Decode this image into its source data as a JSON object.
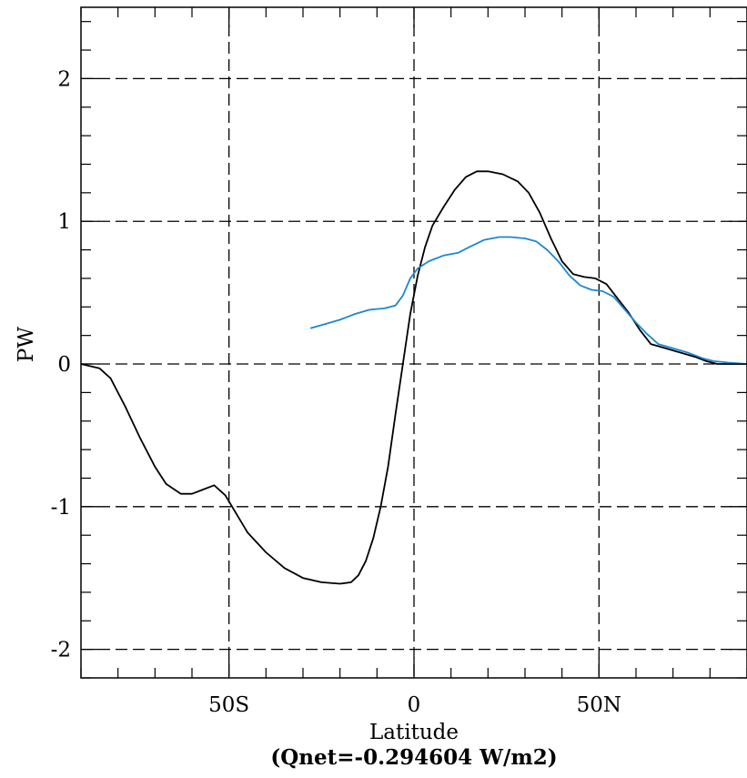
{
  "chart_data": {
    "type": "line",
    "title": "",
    "xlabel": "Latitude",
    "subtitle": "(Qnet=-0.294604 W/m2)",
    "ylabel": "PW",
    "xlim": [
      -90,
      90
    ],
    "ylim": [
      -2.2,
      2.5
    ],
    "grid": true,
    "x_ticks": [
      {
        "value": -50,
        "label": "50S"
      },
      {
        "value": 0,
        "label": "0"
      },
      {
        "value": 50,
        "label": "50N"
      }
    ],
    "y_ticks": [
      {
        "value": -2,
        "label": "-2"
      },
      {
        "value": -1,
        "label": "-1"
      },
      {
        "value": 0,
        "label": "0"
      },
      {
        "value": 1,
        "label": "1"
      },
      {
        "value": 2,
        "label": "2"
      }
    ],
    "series": [
      {
        "color": "#000000",
        "points": [
          [
            -90,
            0.0
          ],
          [
            -85,
            -0.03
          ],
          [
            -82,
            -0.1
          ],
          [
            -78,
            -0.3
          ],
          [
            -74,
            -0.52
          ],
          [
            -70,
            -0.72
          ],
          [
            -67,
            -0.84
          ],
          [
            -63,
            -0.91
          ],
          [
            -60,
            -0.91
          ],
          [
            -57,
            -0.88
          ],
          [
            -54,
            -0.85
          ],
          [
            -51,
            -0.92
          ],
          [
            -48,
            -1.05
          ],
          [
            -45,
            -1.18
          ],
          [
            -40,
            -1.32
          ],
          [
            -35,
            -1.43
          ],
          [
            -30,
            -1.5
          ],
          [
            -25,
            -1.53
          ],
          [
            -20,
            -1.54
          ],
          [
            -17,
            -1.53
          ],
          [
            -15,
            -1.48
          ],
          [
            -13,
            -1.38
          ],
          [
            -11,
            -1.22
          ],
          [
            -9,
            -1.0
          ],
          [
            -7,
            -0.72
          ],
          [
            -5,
            -0.35
          ],
          [
            -3,
            0.0
          ],
          [
            -1,
            0.35
          ],
          [
            1,
            0.62
          ],
          [
            3,
            0.82
          ],
          [
            5,
            0.97
          ],
          [
            8,
            1.1
          ],
          [
            11,
            1.22
          ],
          [
            14,
            1.31
          ],
          [
            17,
            1.35
          ],
          [
            20,
            1.35
          ],
          [
            24,
            1.33
          ],
          [
            28,
            1.28
          ],
          [
            31,
            1.2
          ],
          [
            34,
            1.06
          ],
          [
            37,
            0.88
          ],
          [
            40,
            0.72
          ],
          [
            43,
            0.63
          ],
          [
            46,
            0.61
          ],
          [
            49,
            0.6
          ],
          [
            52,
            0.56
          ],
          [
            55,
            0.46
          ],
          [
            58,
            0.36
          ],
          [
            61,
            0.24
          ],
          [
            64,
            0.14
          ],
          [
            68,
            0.11
          ],
          [
            72,
            0.08
          ],
          [
            76,
            0.05
          ],
          [
            79,
            0.02
          ],
          [
            82,
            0.0
          ],
          [
            86,
            0.0
          ],
          [
            90,
            0.0
          ]
        ]
      },
      {
        "color": "#1c87d0",
        "points": [
          [
            -28,
            0.25
          ],
          [
            -24,
            0.28
          ],
          [
            -20,
            0.31
          ],
          [
            -16,
            0.35
          ],
          [
            -12,
            0.38
          ],
          [
            -8,
            0.39
          ],
          [
            -5,
            0.41
          ],
          [
            -3,
            0.48
          ],
          [
            -1,
            0.6
          ],
          [
            1,
            0.67
          ],
          [
            4,
            0.72
          ],
          [
            8,
            0.76
          ],
          [
            12,
            0.78
          ],
          [
            15,
            0.82
          ],
          [
            19,
            0.87
          ],
          [
            23,
            0.89
          ],
          [
            26,
            0.89
          ],
          [
            30,
            0.88
          ],
          [
            33,
            0.86
          ],
          [
            36,
            0.8
          ],
          [
            39,
            0.72
          ],
          [
            42,
            0.62
          ],
          [
            45,
            0.55
          ],
          [
            48,
            0.52
          ],
          [
            51,
            0.51
          ],
          [
            54,
            0.47
          ],
          [
            57,
            0.38
          ],
          [
            60,
            0.29
          ],
          [
            63,
            0.21
          ],
          [
            66,
            0.14
          ],
          [
            70,
            0.11
          ],
          [
            74,
            0.08
          ],
          [
            78,
            0.04
          ],
          [
            81,
            0.02
          ],
          [
            85,
            0.01
          ],
          [
            90,
            0.0
          ]
        ]
      }
    ]
  }
}
